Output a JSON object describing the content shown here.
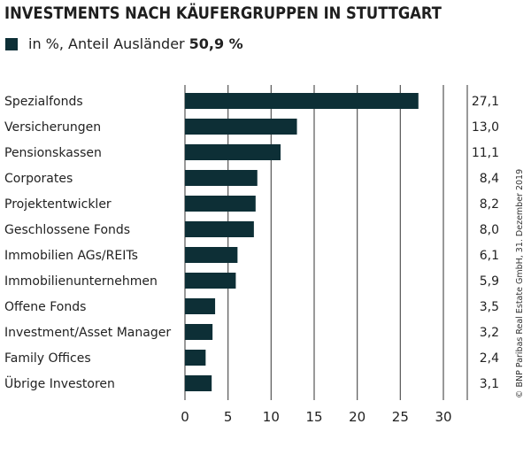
{
  "chart_data": {
    "type": "bar",
    "orientation": "horizontal",
    "title": "INVESTMENTS NACH KÄUFERGRUPPEN IN STUTTGART",
    "legend": {
      "label": "in %, Anteil Ausländer",
      "highlight": "50,9 %",
      "placement": "top-left"
    },
    "categories": [
      "Spezialfonds",
      "Versicherungen",
      "Pensionskassen",
      "Corporates",
      "Projektentwickler",
      "Geschlossene Fonds",
      "Immobilien AGs/REITs",
      "Immobilienunternehmen",
      "Offene Fonds",
      "Investment/Asset Manager",
      "Family Offices",
      "Übrige Investoren"
    ],
    "values": [
      27.1,
      13.0,
      11.1,
      8.4,
      8.2,
      8.0,
      6.1,
      5.9,
      3.5,
      3.2,
      2.4,
      3.1
    ],
    "value_labels": [
      "27,1",
      "13,0",
      "11,1",
      "8,4",
      "8,2",
      "8,0",
      "6,1",
      "5,9",
      "3,5",
      "3,2",
      "2,4",
      "3,1"
    ],
    "xlim": [
      0,
      30
    ],
    "xticks": [
      "0",
      "5",
      "10",
      "15",
      "20",
      "25",
      "30"
    ],
    "grid": true,
    "bar_color": "#0d2f36",
    "source": "© BNP Paribas Real Estate GmbH, 31. Dezember 2019"
  }
}
